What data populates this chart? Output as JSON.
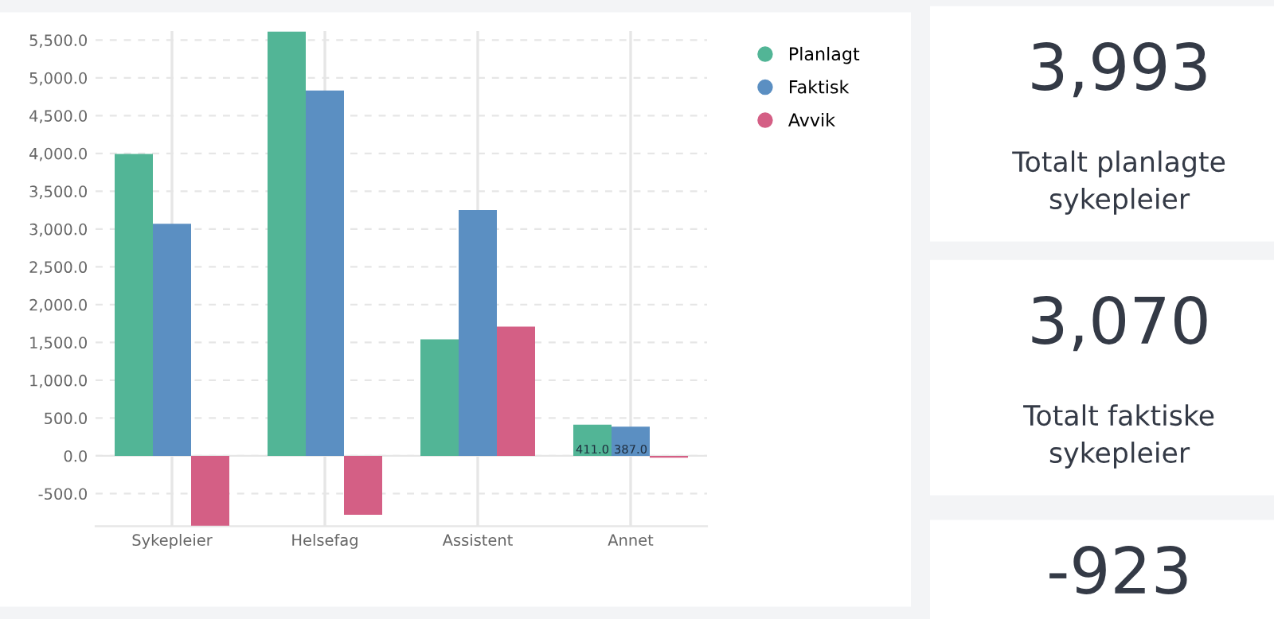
{
  "chart_data": [
    {
      "type": "bar",
      "categories": [
        "Sykepleier",
        "Helsefag",
        "Assistent",
        "Annet"
      ],
      "series": [
        {
          "name": "Planlagt",
          "color": "#52b596",
          "values": [
            3993,
            5610,
            1540,
            411
          ],
          "value_labels": [
            null,
            null,
            null,
            "411.0"
          ]
        },
        {
          "name": "Faktisk",
          "color": "#5b8fc2",
          "values": [
            3070,
            4831,
            3250,
            387
          ],
          "value_labels": [
            null,
            null,
            null,
            "387.0"
          ]
        },
        {
          "name": "Avvik",
          "color": "#d45f85",
          "values": [
            -923,
            -779,
            1710,
            -24
          ]
        }
      ],
      "ylim": [
        -930,
        5620
      ],
      "yticks": [
        {
          "value": -500,
          "label": "-500.0"
        },
        {
          "value": 0,
          "label": "0.0"
        },
        {
          "value": 500,
          "label": "500.0"
        },
        {
          "value": 1000,
          "label": "1,000.0"
        },
        {
          "value": 1500,
          "label": "1,500.0"
        },
        {
          "value": 2000,
          "label": "2,000.0"
        },
        {
          "value": 2500,
          "label": "2,500.0"
        },
        {
          "value": 3000,
          "label": "3,000.0"
        },
        {
          "value": 3500,
          "label": "3,500.0"
        },
        {
          "value": 4000,
          "label": "4,000.0"
        },
        {
          "value": 4500,
          "label": "4,500.0"
        },
        {
          "value": 5000,
          "label": "5,000.0"
        },
        {
          "value": 5500,
          "label": "5,500.0"
        }
      ],
      "grid": true,
      "legend": "top right",
      "marker": "circle"
    },
    {
      "type": "other",
      "title": "3,993",
      "subtitle": "Totalt planlagte sykepleier"
    },
    {
      "type": "other",
      "title": "3,070",
      "subtitle": "Totalt faktiske sykepleier"
    },
    {
      "type": "other",
      "title": "-923"
    }
  ]
}
